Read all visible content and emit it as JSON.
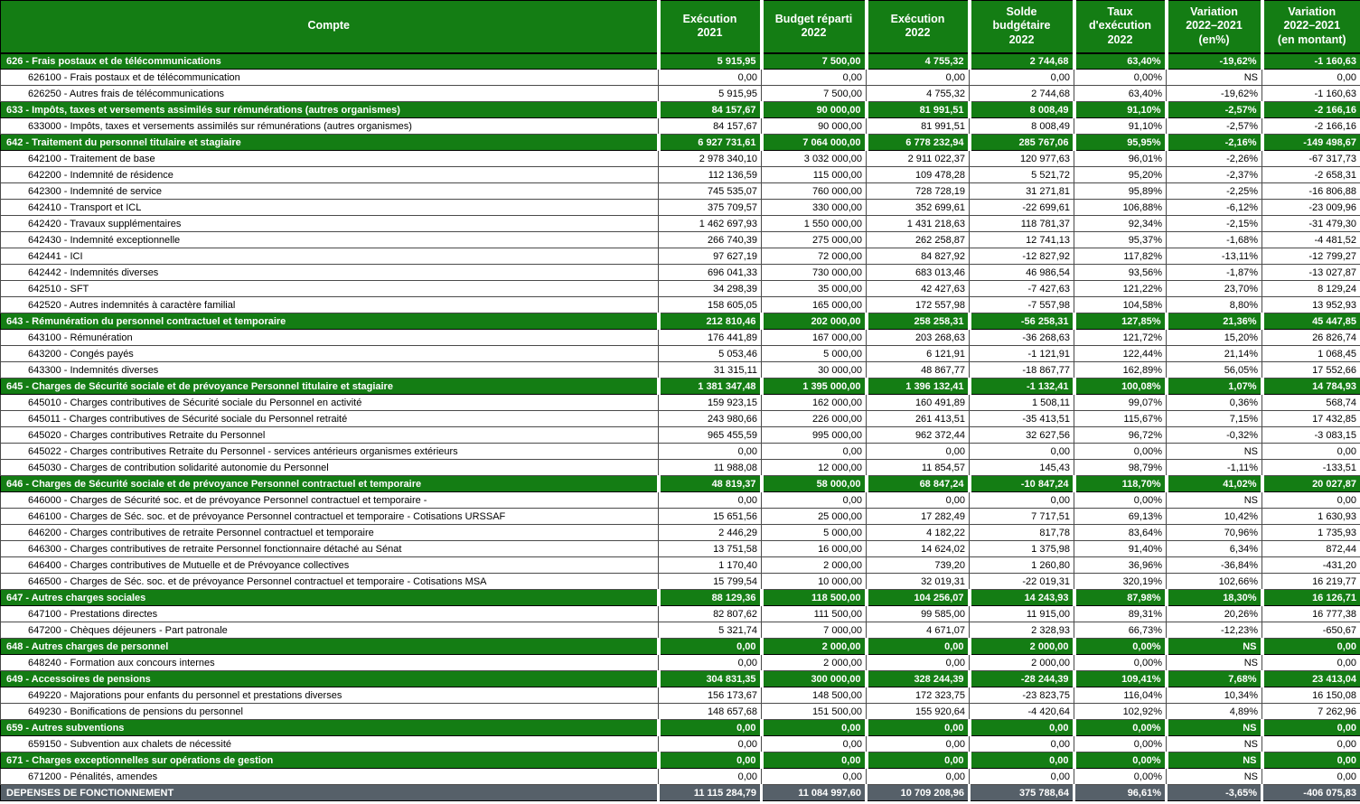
{
  "colors": {
    "green": "#147d14",
    "total_bg": "#566069",
    "grid": "#4a4a4a",
    "header_text": "#ffffff"
  },
  "table": {
    "columns": [
      "Compte",
      "Exécution\n2021",
      "Budget réparti\n2022",
      "Exécution\n2022",
      "Solde\nbudgétaire\n2022",
      "Taux\nd'exécution\n2022",
      "Variation\n2022–2021\n(en%)",
      "Variation\n2022–2021\n(en montant)"
    ],
    "rows": [
      {
        "level": "group",
        "label": "626 - Frais postaux et de télécommunications",
        "v": [
          "5 915,95",
          "7 500,00",
          "4 755,32",
          "2 744,68",
          "63,40%",
          "-19,62%",
          "-1 160,63"
        ]
      },
      {
        "level": "detail",
        "label": "626100 - Frais postaux et de télécommunication",
        "v": [
          "0,00",
          "0,00",
          "0,00",
          "0,00",
          "0,00%",
          "NS",
          "0,00"
        ]
      },
      {
        "level": "detail",
        "label": "626250 - Autres frais de télécommunications",
        "v": [
          "5 915,95",
          "7 500,00",
          "4 755,32",
          "2 744,68",
          "63,40%",
          "-19,62%",
          "-1 160,63"
        ]
      },
      {
        "level": "group",
        "label": "633 - Impôts, taxes et versements assimilés sur rémunérations (autres organismes)",
        "v": [
          "84 157,67",
          "90 000,00",
          "81 991,51",
          "8 008,49",
          "91,10%",
          "-2,57%",
          "-2 166,16"
        ]
      },
      {
        "level": "detail",
        "label": "633000 - Impôts, taxes et versements assimilés sur rémunérations (autres organismes)",
        "v": [
          "84 157,67",
          "90 000,00",
          "81 991,51",
          "8 008,49",
          "91,10%",
          "-2,57%",
          "-2 166,16"
        ]
      },
      {
        "level": "group",
        "label": "642 - Traitement du personnel titulaire et stagiaire",
        "v": [
          "6 927 731,61",
          "7 064 000,00",
          "6 778 232,94",
          "285 767,06",
          "95,95%",
          "-2,16%",
          "-149 498,67"
        ]
      },
      {
        "level": "detail",
        "label": "642100 - Traitement de base",
        "v": [
          "2 978 340,10",
          "3 032 000,00",
          "2 911 022,37",
          "120 977,63",
          "96,01%",
          "-2,26%",
          "-67 317,73"
        ]
      },
      {
        "level": "detail",
        "label": "642200 - Indemnité de résidence",
        "v": [
          "112 136,59",
          "115 000,00",
          "109 478,28",
          "5 521,72",
          "95,20%",
          "-2,37%",
          "-2 658,31"
        ]
      },
      {
        "level": "detail",
        "label": "642300 - Indemnité de service",
        "v": [
          "745 535,07",
          "760 000,00",
          "728 728,19",
          "31 271,81",
          "95,89%",
          "-2,25%",
          "-16 806,88"
        ]
      },
      {
        "level": "detail",
        "label": "642410 - Transport et ICL",
        "v": [
          "375 709,57",
          "330 000,00",
          "352 699,61",
          "-22 699,61",
          "106,88%",
          "-6,12%",
          "-23 009,96"
        ]
      },
      {
        "level": "detail",
        "label": "642420 - Travaux supplémentaires",
        "v": [
          "1 462 697,93",
          "1 550 000,00",
          "1 431 218,63",
          "118 781,37",
          "92,34%",
          "-2,15%",
          "-31 479,30"
        ]
      },
      {
        "level": "detail",
        "label": "642430 - Indemnité exceptionnelle",
        "v": [
          "266 740,39",
          "275 000,00",
          "262 258,87",
          "12 741,13",
          "95,37%",
          "-1,68%",
          "-4 481,52"
        ]
      },
      {
        "level": "detail",
        "label": "642441 - ICI",
        "v": [
          "97 627,19",
          "72 000,00",
          "84 827,92",
          "-12 827,92",
          "117,82%",
          "-13,11%",
          "-12 799,27"
        ]
      },
      {
        "level": "detail",
        "label": "642442 - Indemnités diverses",
        "v": [
          "696 041,33",
          "730 000,00",
          "683 013,46",
          "46 986,54",
          "93,56%",
          "-1,87%",
          "-13 027,87"
        ]
      },
      {
        "level": "detail",
        "label": "642510 - SFT",
        "v": [
          "34 298,39",
          "35 000,00",
          "42 427,63",
          "-7 427,63",
          "121,22%",
          "23,70%",
          "8 129,24"
        ]
      },
      {
        "level": "detail",
        "label": "642520 - Autres indemnités à caractère familial",
        "v": [
          "158 605,05",
          "165 000,00",
          "172 557,98",
          "-7 557,98",
          "104,58%",
          "8,80%",
          "13 952,93"
        ]
      },
      {
        "level": "group",
        "label": "643 - Rémunération du personnel contractuel et temporaire",
        "v": [
          "212 810,46",
          "202 000,00",
          "258 258,31",
          "-56 258,31",
          "127,85%",
          "21,36%",
          "45 447,85"
        ]
      },
      {
        "level": "detail",
        "label": "643100 - Rémunération",
        "v": [
          "176 441,89",
          "167 000,00",
          "203 268,63",
          "-36 268,63",
          "121,72%",
          "15,20%",
          "26 826,74"
        ]
      },
      {
        "level": "detail",
        "label": "643200 - Congés payés",
        "v": [
          "5 053,46",
          "5 000,00",
          "6 121,91",
          "-1 121,91",
          "122,44%",
          "21,14%",
          "1 068,45"
        ]
      },
      {
        "level": "detail",
        "label": "643300 - Indemnités diverses",
        "v": [
          "31 315,11",
          "30 000,00",
          "48 867,77",
          "-18 867,77",
          "162,89%",
          "56,05%",
          "17 552,66"
        ]
      },
      {
        "level": "group",
        "label": "645 - Charges de Sécurité sociale et de prévoyance Personnel titulaire et stagiaire",
        "v": [
          "1 381 347,48",
          "1 395 000,00",
          "1 396 132,41",
          "-1 132,41",
          "100,08%",
          "1,07%",
          "14 784,93"
        ]
      },
      {
        "level": "detail",
        "label": "645010 - Charges contributives de Sécurité sociale du Personnel en activité",
        "v": [
          "159 923,15",
          "162 000,00",
          "160 491,89",
          "1 508,11",
          "99,07%",
          "0,36%",
          "568,74"
        ]
      },
      {
        "level": "detail",
        "label": "645011 - Charges contributives de Sécurité sociale du Personnel retraité",
        "v": [
          "243 980,66",
          "226 000,00",
          "261 413,51",
          "-35 413,51",
          "115,67%",
          "7,15%",
          "17 432,85"
        ]
      },
      {
        "level": "detail",
        "label": "645020 - Charges contributives Retraite du Personnel",
        "v": [
          "965 455,59",
          "995 000,00",
          "962 372,44",
          "32 627,56",
          "96,72%",
          "-0,32%",
          "-3 083,15"
        ]
      },
      {
        "level": "detail",
        "label": "645022 - Charges contributives Retraite du Personnel - services antérieurs organismes extérieurs",
        "v": [
          "0,00",
          "0,00",
          "0,00",
          "0,00",
          "0,00%",
          "NS",
          "0,00"
        ]
      },
      {
        "level": "detail",
        "label": "645030 - Charges de contribution solidarité autonomie du Personnel",
        "v": [
          "11 988,08",
          "12 000,00",
          "11 854,57",
          "145,43",
          "98,79%",
          "-1,11%",
          "-133,51"
        ]
      },
      {
        "level": "group",
        "label": "646 - Charges de Sécurité sociale et de prévoyance Personnel contractuel et temporaire",
        "v": [
          "48 819,37",
          "58 000,00",
          "68 847,24",
          "-10 847,24",
          "118,70%",
          "41,02%",
          "20 027,87"
        ]
      },
      {
        "level": "detail",
        "label": "646000 - Charges de Sécurité soc. et de prévoyance Personnel contractuel et temporaire -",
        "v": [
          "0,00",
          "0,00",
          "0,00",
          "0,00",
          "0,00%",
          "NS",
          "0,00"
        ]
      },
      {
        "level": "detail",
        "label": "646100 - Charges de Séc. soc. et de prévoyance Personnel contractuel et temporaire - Cotisations URSSAF",
        "v": [
          "15 651,56",
          "25 000,00",
          "17 282,49",
          "7 717,51",
          "69,13%",
          "10,42%",
          "1 630,93"
        ]
      },
      {
        "level": "detail",
        "label": "646200 - Charges contributives de retraite Personnel contractuel et temporaire",
        "v": [
          "2 446,29",
          "5 000,00",
          "4 182,22",
          "817,78",
          "83,64%",
          "70,96%",
          "1 735,93"
        ]
      },
      {
        "level": "detail",
        "label": "646300 - Charges contributives de retraite Personnel fonctionnaire détaché au Sénat",
        "v": [
          "13 751,58",
          "16 000,00",
          "14 624,02",
          "1 375,98",
          "91,40%",
          "6,34%",
          "872,44"
        ]
      },
      {
        "level": "detail",
        "label": "646400 - Charges contributives de Mutuelle et de Prévoyance collectives",
        "v": [
          "1 170,40",
          "2 000,00",
          "739,20",
          "1 260,80",
          "36,96%",
          "-36,84%",
          "-431,20"
        ]
      },
      {
        "level": "detail",
        "label": "646500 - Charges de Séc. soc. et de prévoyance Personnel contractuel et temporaire - Cotisations MSA",
        "v": [
          "15 799,54",
          "10 000,00",
          "32 019,31",
          "-22 019,31",
          "320,19%",
          "102,66%",
          "16 219,77"
        ]
      },
      {
        "level": "group",
        "label": "647 - Autres charges sociales",
        "v": [
          "88 129,36",
          "118 500,00",
          "104 256,07",
          "14 243,93",
          "87,98%",
          "18,30%",
          "16 126,71"
        ]
      },
      {
        "level": "detail",
        "label": "647100 - Prestations directes",
        "v": [
          "82 807,62",
          "111 500,00",
          "99 585,00",
          "11 915,00",
          "89,31%",
          "20,26%",
          "16 777,38"
        ]
      },
      {
        "level": "detail",
        "label": "647200 - Chèques déjeuners - Part patronale",
        "v": [
          "5 321,74",
          "7 000,00",
          "4 671,07",
          "2 328,93",
          "66,73%",
          "-12,23%",
          "-650,67"
        ]
      },
      {
        "level": "group",
        "label": "648 - Autres charges de personnel",
        "v": [
          "0,00",
          "2 000,00",
          "0,00",
          "2 000,00",
          "0,00%",
          "NS",
          "0,00"
        ]
      },
      {
        "level": "detail",
        "label": "648240 - Formation aux concours internes",
        "v": [
          "0,00",
          "2 000,00",
          "0,00",
          "2 000,00",
          "0,00%",
          "NS",
          "0,00"
        ]
      },
      {
        "level": "group",
        "label": "649 - Accessoires de pensions",
        "v": [
          "304 831,35",
          "300 000,00",
          "328 244,39",
          "-28 244,39",
          "109,41%",
          "7,68%",
          "23 413,04"
        ]
      },
      {
        "level": "detail",
        "label": "649220 - Majorations pour enfants du personnel et prestations diverses",
        "v": [
          "156 173,67",
          "148 500,00",
          "172 323,75",
          "-23 823,75",
          "116,04%",
          "10,34%",
          "16 150,08"
        ]
      },
      {
        "level": "detail",
        "label": "649230 - Bonifications de pensions du personnel",
        "v": [
          "148 657,68",
          "151 500,00",
          "155 920,64",
          "-4 420,64",
          "102,92%",
          "4,89%",
          "7 262,96"
        ]
      },
      {
        "level": "group",
        "label": "659 - Autres subventions",
        "v": [
          "0,00",
          "0,00",
          "0,00",
          "0,00",
          "0,00%",
          "NS",
          "0,00"
        ]
      },
      {
        "level": "detail",
        "label": "659150 - Subvention aux chalets de nécessité",
        "v": [
          "0,00",
          "0,00",
          "0,00",
          "0,00",
          "0,00%",
          "NS",
          "0,00"
        ]
      },
      {
        "level": "group",
        "label": "671 - Charges exceptionnelles sur opérations de gestion",
        "v": [
          "0,00",
          "0,00",
          "0,00",
          "0,00",
          "0,00%",
          "NS",
          "0,00"
        ]
      },
      {
        "level": "detail",
        "label": "671200 - Pénalités, amendes",
        "v": [
          "0,00",
          "0,00",
          "0,00",
          "0,00",
          "0,00%",
          "NS",
          "0,00"
        ]
      }
    ],
    "total": {
      "label": "DEPENSES DE FONCTIONNEMENT",
      "v": [
        "11 115 284,79",
        "11 084 997,60",
        "10 709 208,96",
        "375 788,64",
        "96,61%",
        "-3,65%",
        "-406 075,83"
      ]
    }
  }
}
